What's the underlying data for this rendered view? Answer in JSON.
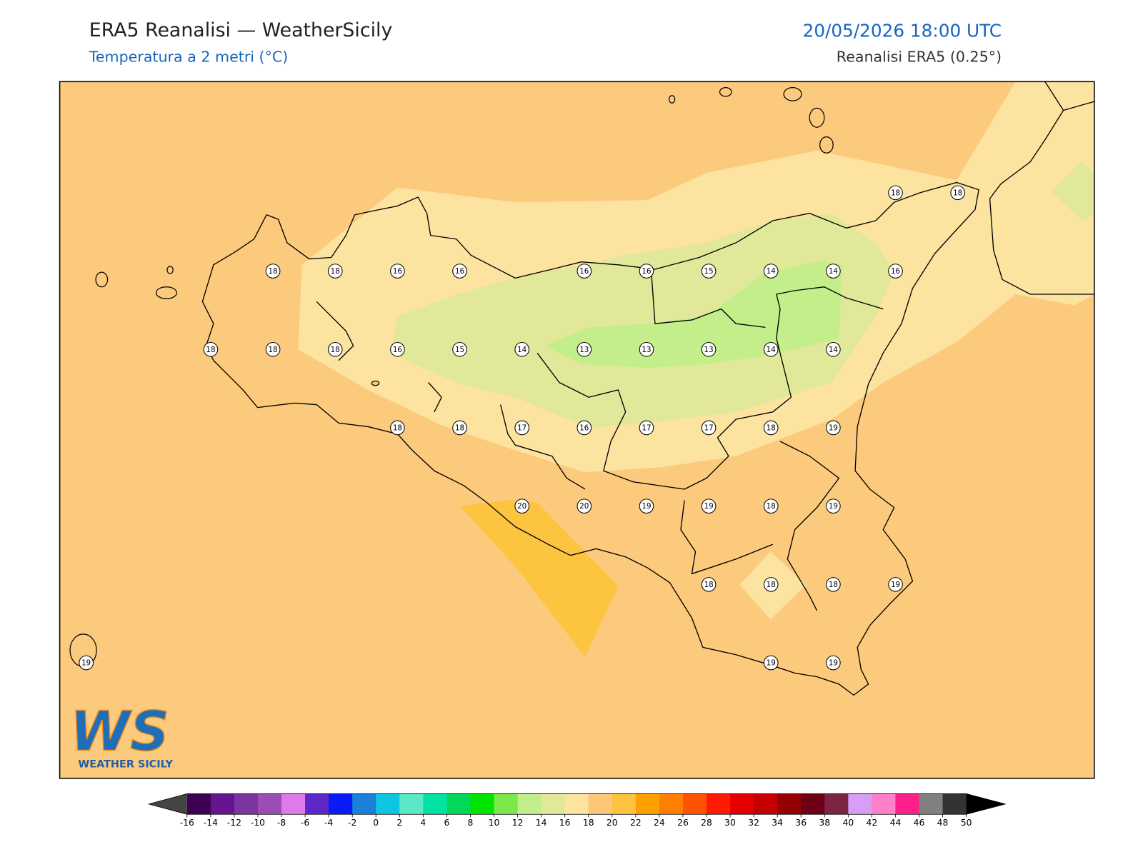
{
  "header": {
    "title": "ERA5 Reanalisi — WeatherSicily",
    "subtitle": "Temperatura a 2 metri (°C)",
    "datetime": "20/05/2026 18:00 UTC",
    "source": "Reanalisi ERA5 (0.25°)"
  },
  "stations": {
    "rows": [
      [
        null,
        null,
        null,
        null,
        null,
        null,
        null,
        null,
        null,
        null,
        null,
        null,
        null,
        18,
        18
      ],
      [
        null,
        null,
        null,
        18,
        18,
        16,
        16,
        null,
        16,
        16,
        15,
        14,
        14,
        16,
        null
      ],
      [
        null,
        null,
        18,
        18,
        18,
        16,
        15,
        14,
        13,
        13,
        13,
        14,
        14,
        null,
        null
      ],
      [
        null,
        null,
        null,
        null,
        null,
        18,
        18,
        17,
        16,
        17,
        17,
        18,
        19,
        null,
        null
      ],
      [
        null,
        null,
        null,
        null,
        null,
        null,
        null,
        20,
        20,
        19,
        19,
        18,
        19,
        null,
        null
      ],
      [
        null,
        null,
        null,
        null,
        null,
        null,
        null,
        null,
        null,
        null,
        18,
        18,
        18,
        19,
        null
      ],
      [
        19,
        null,
        null,
        null,
        null,
        null,
        null,
        null,
        null,
        null,
        null,
        19,
        19,
        null,
        null
      ]
    ]
  },
  "colorbar": {
    "ticks": [
      -16,
      -14,
      -12,
      -10,
      -8,
      -6,
      -4,
      -2,
      0,
      2,
      4,
      6,
      8,
      10,
      12,
      14,
      16,
      18,
      20,
      22,
      24,
      26,
      28,
      30,
      32,
      34,
      36,
      38,
      40,
      42,
      44,
      46,
      48,
      50
    ],
    "colors": [
      "#3d0052",
      "#66148f",
      "#7b35a0",
      "#9b4db4",
      "#de7be8",
      "#5c28c8",
      "#0a1cf5",
      "#1a80d8",
      "#0ec6e2",
      "#5ae8c9",
      "#00e3a3",
      "#00d85c",
      "#00e400",
      "#7ae84a",
      "#c0ef8a",
      "#e1e89a",
      "#fde3a0",
      "#fcc878",
      "#fdc33e",
      "#ffa000",
      "#ff8000",
      "#ff5300",
      "#ff1a00",
      "#e40000",
      "#c50000",
      "#950000",
      "#6d0016",
      "#7c2444",
      "#d69ef5",
      "#ff7fc8",
      "#ff1f8b",
      "#808080",
      "#333333"
    ],
    "under_color": "#444444",
    "over_color": "#000000"
  },
  "logo": {
    "mark": "WS",
    "text": "WEATHER SICILY"
  }
}
